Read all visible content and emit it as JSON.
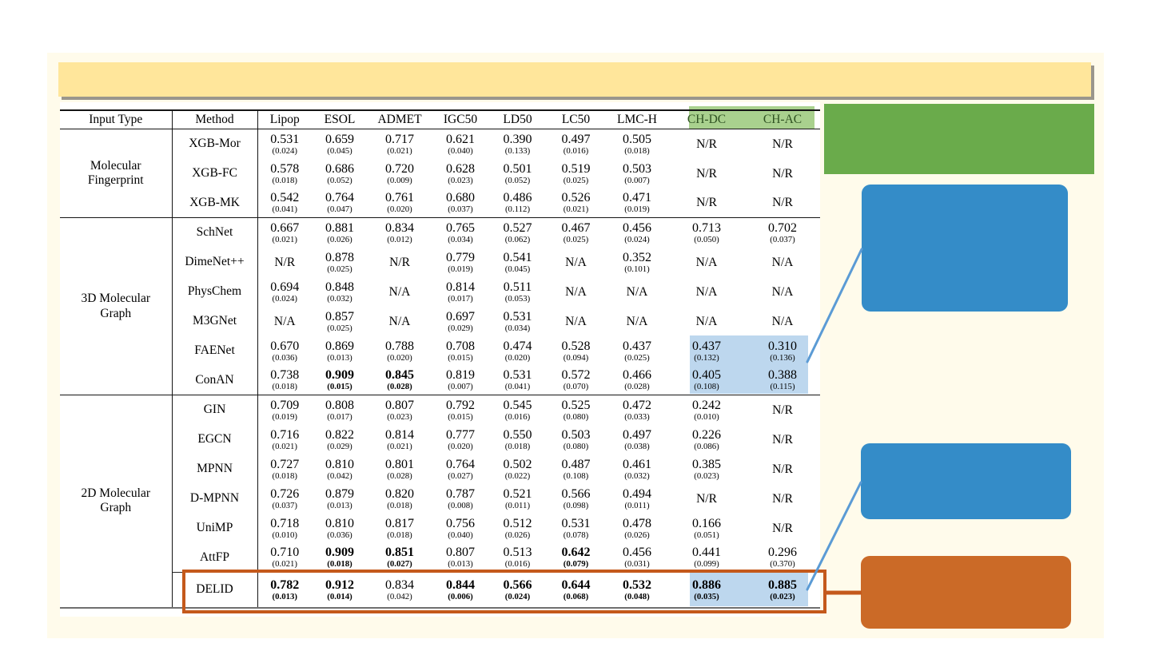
{
  "slide": {
    "banner_text": "",
    "colors": {
      "background_cream": "#FFFBEB",
      "banner_yellow": "#FFE69B",
      "callout_green": "#6AAB4B",
      "callout_blue": "#348CC8",
      "callout_orange": "#CB6A27",
      "header_highlight_green": "#A9D18E",
      "header_highlight_text": "#2F5222",
      "cell_highlight_blue": "#BDD7EE",
      "outline_orange": "#C4591B",
      "connector_blue": "#5B9BD5"
    }
  },
  "table": {
    "headers": [
      "Input Type",
      "Method",
      "Lipop",
      "ESOL",
      "ADMET",
      "IGC50",
      "LD50",
      "LC50",
      "LMC-H",
      "CH-DC",
      "CH-AC"
    ],
    "highlighted_header_columns": [
      "CH-DC",
      "CH-AC"
    ],
    "groups": [
      {
        "input_type": "Molecular\nFingerprint",
        "rows": [
          {
            "method": "XGB-Mor",
            "cells": [
              {
                "v": "0.531",
                "s": "(0.024)"
              },
              {
                "v": "0.659",
                "s": "(0.045)"
              },
              {
                "v": "0.717",
                "s": "(0.021)"
              },
              {
                "v": "0.621",
                "s": "(0.040)"
              },
              {
                "v": "0.390",
                "s": "(0.133)"
              },
              {
                "v": "0.497",
                "s": "(0.016)"
              },
              {
                "v": "0.505",
                "s": "(0.018)"
              },
              {
                "v": "N/R"
              },
              {
                "v": "N/R"
              }
            ]
          },
          {
            "method": "XGB-FC",
            "cells": [
              {
                "v": "0.578",
                "s": "(0.018)"
              },
              {
                "v": "0.686",
                "s": "(0.052)"
              },
              {
                "v": "0.720",
                "s": "(0.009)"
              },
              {
                "v": "0.628",
                "s": "(0.023)"
              },
              {
                "v": "0.501",
                "s": "(0.052)"
              },
              {
                "v": "0.519",
                "s": "(0.025)"
              },
              {
                "v": "0.503",
                "s": "(0.007)"
              },
              {
                "v": "N/R"
              },
              {
                "v": "N/R"
              }
            ]
          },
          {
            "method": "XGB-MK",
            "cells": [
              {
                "v": "0.542",
                "s": "(0.041)"
              },
              {
                "v": "0.764",
                "s": "(0.047)"
              },
              {
                "v": "0.761",
                "s": "(0.020)"
              },
              {
                "v": "0.680",
                "s": "(0.037)"
              },
              {
                "v": "0.486",
                "s": "(0.112)"
              },
              {
                "v": "0.526",
                "s": "(0.021)"
              },
              {
                "v": "0.471",
                "s": "(0.019)"
              },
              {
                "v": "N/R"
              },
              {
                "v": "N/R"
              }
            ]
          }
        ]
      },
      {
        "input_type": "3D Molecular\nGraph",
        "rows": [
          {
            "method": "SchNet",
            "cells": [
              {
                "v": "0.667",
                "s": "(0.021)"
              },
              {
                "v": "0.881",
                "s": "(0.026)"
              },
              {
                "v": "0.834",
                "s": "(0.012)"
              },
              {
                "v": "0.765",
                "s": "(0.034)"
              },
              {
                "v": "0.527",
                "s": "(0.062)"
              },
              {
                "v": "0.467",
                "s": "(0.025)"
              },
              {
                "v": "0.456",
                "s": "(0.024)"
              },
              {
                "v": "0.713",
                "s": "(0.050)"
              },
              {
                "v": "0.702",
                "s": "(0.037)"
              }
            ]
          },
          {
            "method": "DimeNet++",
            "cells": [
              {
                "v": "N/R"
              },
              {
                "v": "0.878",
                "s": "(0.025)"
              },
              {
                "v": "N/R"
              },
              {
                "v": "0.779",
                "s": "(0.019)"
              },
              {
                "v": "0.541",
                "s": "(0.045)"
              },
              {
                "v": "N/A"
              },
              {
                "v": "0.352",
                "s": "(0.101)"
              },
              {
                "v": "N/A"
              },
              {
                "v": "N/A"
              }
            ]
          },
          {
            "method": "PhysChem",
            "cells": [
              {
                "v": "0.694",
                "s": "(0.024)"
              },
              {
                "v": "0.848",
                "s": "(0.032)"
              },
              {
                "v": "N/A"
              },
              {
                "v": "0.814",
                "s": "(0.017)"
              },
              {
                "v": "0.511",
                "s": "(0.053)"
              },
              {
                "v": "N/A"
              },
              {
                "v": "N/A"
              },
              {
                "v": "N/A"
              },
              {
                "v": "N/A"
              }
            ]
          },
          {
            "method": "M3GNet",
            "cells": [
              {
                "v": "N/A"
              },
              {
                "v": "0.857",
                "s": "(0.025)"
              },
              {
                "v": "N/A"
              },
              {
                "v": "0.697",
                "s": "(0.029)"
              },
              {
                "v": "0.531",
                "s": "(0.034)"
              },
              {
                "v": "N/A"
              },
              {
                "v": "N/A"
              },
              {
                "v": "N/A"
              },
              {
                "v": "N/A"
              }
            ]
          },
          {
            "method": "FAENet",
            "cells": [
              {
                "v": "0.670",
                "s": "(0.036)"
              },
              {
                "v": "0.869",
                "s": "(0.013)"
              },
              {
                "v": "0.788",
                "s": "(0.020)"
              },
              {
                "v": "0.708",
                "s": "(0.015)"
              },
              {
                "v": "0.474",
                "s": "(0.020)"
              },
              {
                "v": "0.528",
                "s": "(0.094)"
              },
              {
                "v": "0.437",
                "s": "(0.025)"
              },
              {
                "v": "0.437",
                "s": "(0.132)",
                "hl": true
              },
              {
                "v": "0.310",
                "s": "(0.136)",
                "hl": true
              }
            ]
          },
          {
            "method": "ConAN",
            "cells": [
              {
                "v": "0.738",
                "s": "(0.018)"
              },
              {
                "v": "0.909",
                "s": "(0.015)",
                "b": true
              },
              {
                "v": "0.845",
                "s": "(0.028)",
                "b": true
              },
              {
                "v": "0.819",
                "s": "(0.007)"
              },
              {
                "v": "0.531",
                "s": "(0.041)"
              },
              {
                "v": "0.572",
                "s": "(0.070)"
              },
              {
                "v": "0.466",
                "s": "(0.028)"
              },
              {
                "v": "0.405",
                "s": "(0.108)",
                "hl": true
              },
              {
                "v": "0.388",
                "s": "(0.115)",
                "hl": true
              }
            ]
          }
        ]
      },
      {
        "input_type": "2D Molecular\nGraph",
        "rows": [
          {
            "method": "GIN",
            "cells": [
              {
                "v": "0.709",
                "s": "(0.019)"
              },
              {
                "v": "0.808",
                "s": "(0.017)"
              },
              {
                "v": "0.807",
                "s": "(0.023)"
              },
              {
                "v": "0.792",
                "s": "(0.015)"
              },
              {
                "v": "0.545",
                "s": "(0.016)"
              },
              {
                "v": "0.525",
                "s": "(0.080)"
              },
              {
                "v": "0.472",
                "s": "(0.033)"
              },
              {
                "v": "0.242",
                "s": "(0.010)"
              },
              {
                "v": "N/R"
              }
            ]
          },
          {
            "method": "EGCN",
            "cells": [
              {
                "v": "0.716",
                "s": "(0.021)"
              },
              {
                "v": "0.822",
                "s": "(0.029)"
              },
              {
                "v": "0.814",
                "s": "(0.021)"
              },
              {
                "v": "0.777",
                "s": "(0.020)"
              },
              {
                "v": "0.550",
                "s": "(0.018)"
              },
              {
                "v": "0.503",
                "s": "(0.080)"
              },
              {
                "v": "0.497",
                "s": "(0.038)"
              },
              {
                "v": "0.226",
                "s": "(0.086)"
              },
              {
                "v": "N/R"
              }
            ]
          },
          {
            "method": "MPNN",
            "cells": [
              {
                "v": "0.727",
                "s": "(0.018)"
              },
              {
                "v": "0.810",
                "s": "(0.042)"
              },
              {
                "v": "0.801",
                "s": "(0.028)"
              },
              {
                "v": "0.764",
                "s": "(0.027)"
              },
              {
                "v": "0.502",
                "s": "(0.022)"
              },
              {
                "v": "0.487",
                "s": "(0.108)"
              },
              {
                "v": "0.461",
                "s": "(0.032)"
              },
              {
                "v": "0.385",
                "s": "(0.023)"
              },
              {
                "v": "N/R"
              }
            ]
          },
          {
            "method": "D-MPNN",
            "cells": [
              {
                "v": "0.726",
                "s": "(0.037)"
              },
              {
                "v": "0.879",
                "s": "(0.013)"
              },
              {
                "v": "0.820",
                "s": "(0.018)"
              },
              {
                "v": "0.787",
                "s": "(0.008)"
              },
              {
                "v": "0.521",
                "s": "(0.011)"
              },
              {
                "v": "0.566",
                "s": "(0.098)"
              },
              {
                "v": "0.494",
                "s": "(0.011)"
              },
              {
                "v": "N/R"
              },
              {
                "v": "N/R"
              }
            ]
          },
          {
            "method": "UniMP",
            "cells": [
              {
                "v": "0.718",
                "s": "(0.010)"
              },
              {
                "v": "0.810",
                "s": "(0.036)"
              },
              {
                "v": "0.817",
                "s": "(0.018)"
              },
              {
                "v": "0.756",
                "s": "(0.040)"
              },
              {
                "v": "0.512",
                "s": "(0.026)"
              },
              {
                "v": "0.531",
                "s": "(0.078)"
              },
              {
                "v": "0.478",
                "s": "(0.026)"
              },
              {
                "v": "0.166",
                "s": "(0.051)"
              },
              {
                "v": "N/R"
              }
            ]
          },
          {
            "method": "AttFP",
            "cells": [
              {
                "v": "0.710",
                "s": "(0.021)"
              },
              {
                "v": "0.909",
                "s": "(0.018)",
                "b": true
              },
              {
                "v": "0.851",
                "s": "(0.027)",
                "b": true
              },
              {
                "v": "0.807",
                "s": "(0.013)"
              },
              {
                "v": "0.513",
                "s": "(0.016)"
              },
              {
                "v": "0.642",
                "s": "(0.079)",
                "b": true
              },
              {
                "v": "0.456",
                "s": "(0.031)"
              },
              {
                "v": "0.441",
                "s": "(0.099)"
              },
              {
                "v": "0.296",
                "s": "(0.370)"
              }
            ]
          },
          {
            "method": "DELID",
            "outlined": true,
            "cells": [
              {
                "v": "0.782",
                "s": "(0.013)",
                "b": true
              },
              {
                "v": "0.912",
                "s": "(0.014)",
                "b": true
              },
              {
                "v": "0.834",
                "s": "(0.042)"
              },
              {
                "v": "0.844",
                "s": "(0.006)",
                "b": true
              },
              {
                "v": "0.566",
                "s": "(0.024)",
                "b": true
              },
              {
                "v": "0.644",
                "s": "(0.068)",
                "b": true
              },
              {
                "v": "0.532",
                "s": "(0.048)",
                "b": true
              },
              {
                "v": "0.886",
                "s": "(0.035)",
                "b": true,
                "hl": true
              },
              {
                "v": "0.885",
                "s": "(0.023)",
                "b": true,
                "hl": true
              }
            ]
          }
        ]
      }
    ]
  }
}
